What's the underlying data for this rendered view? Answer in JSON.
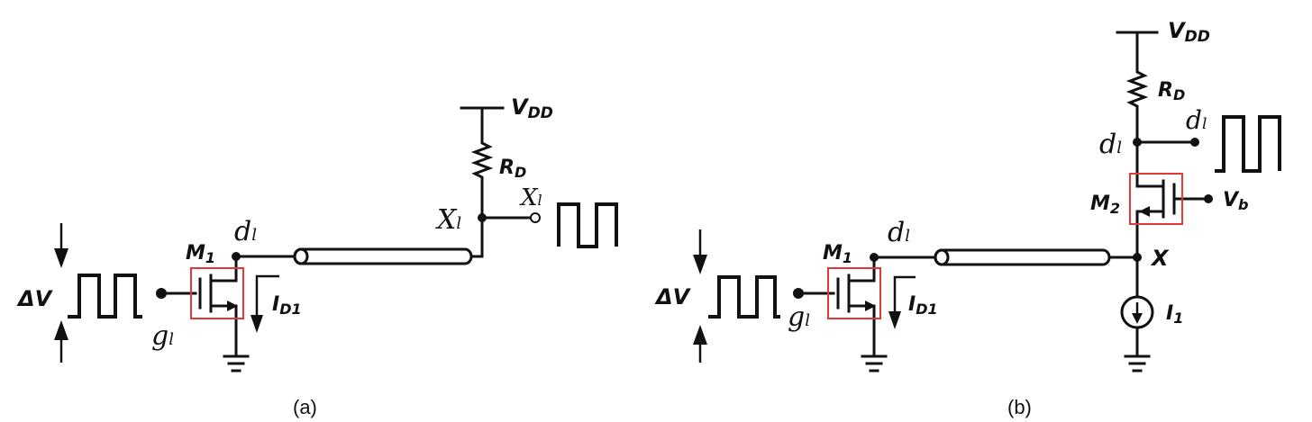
{
  "panels": [
    {
      "caption": "(a)",
      "labels": {
        "vdd": "V",
        "vdd_sub": "DD",
        "rd": "R",
        "rd_sub": "D",
        "m1": "M",
        "m1_sub": "1",
        "id": "I",
        "id_sub": "D1",
        "dv": "ΔV",
        "d1": "d",
        "d1_sub": "l",
        "g1": "g",
        "g1_sub": "l",
        "x1": "X",
        "x1_sub": "l",
        "x1b": "X",
        "x1b_sub": "l"
      }
    },
    {
      "caption": "(b)",
      "labels": {
        "vdd": "V",
        "vdd_sub": "DD",
        "rd": "R",
        "rd_sub": "D",
        "m1": "M",
        "m1_sub": "1",
        "m2": "M",
        "m2_sub": "2",
        "vb": "V",
        "vb_sub": "b",
        "x": "X",
        "i1": "I",
        "i1_sub": "1",
        "id": "I",
        "id_sub": "D1",
        "dv": "ΔV",
        "d1a": "d",
        "d1a_sub": "l",
        "d1b": "d",
        "d1b_sub": "l",
        "d1c": "d",
        "d1c_sub": "l",
        "g1": "g",
        "g1_sub": "l"
      }
    }
  ],
  "colors": {
    "wire": "#111111",
    "highlight_box": "#e53935"
  }
}
